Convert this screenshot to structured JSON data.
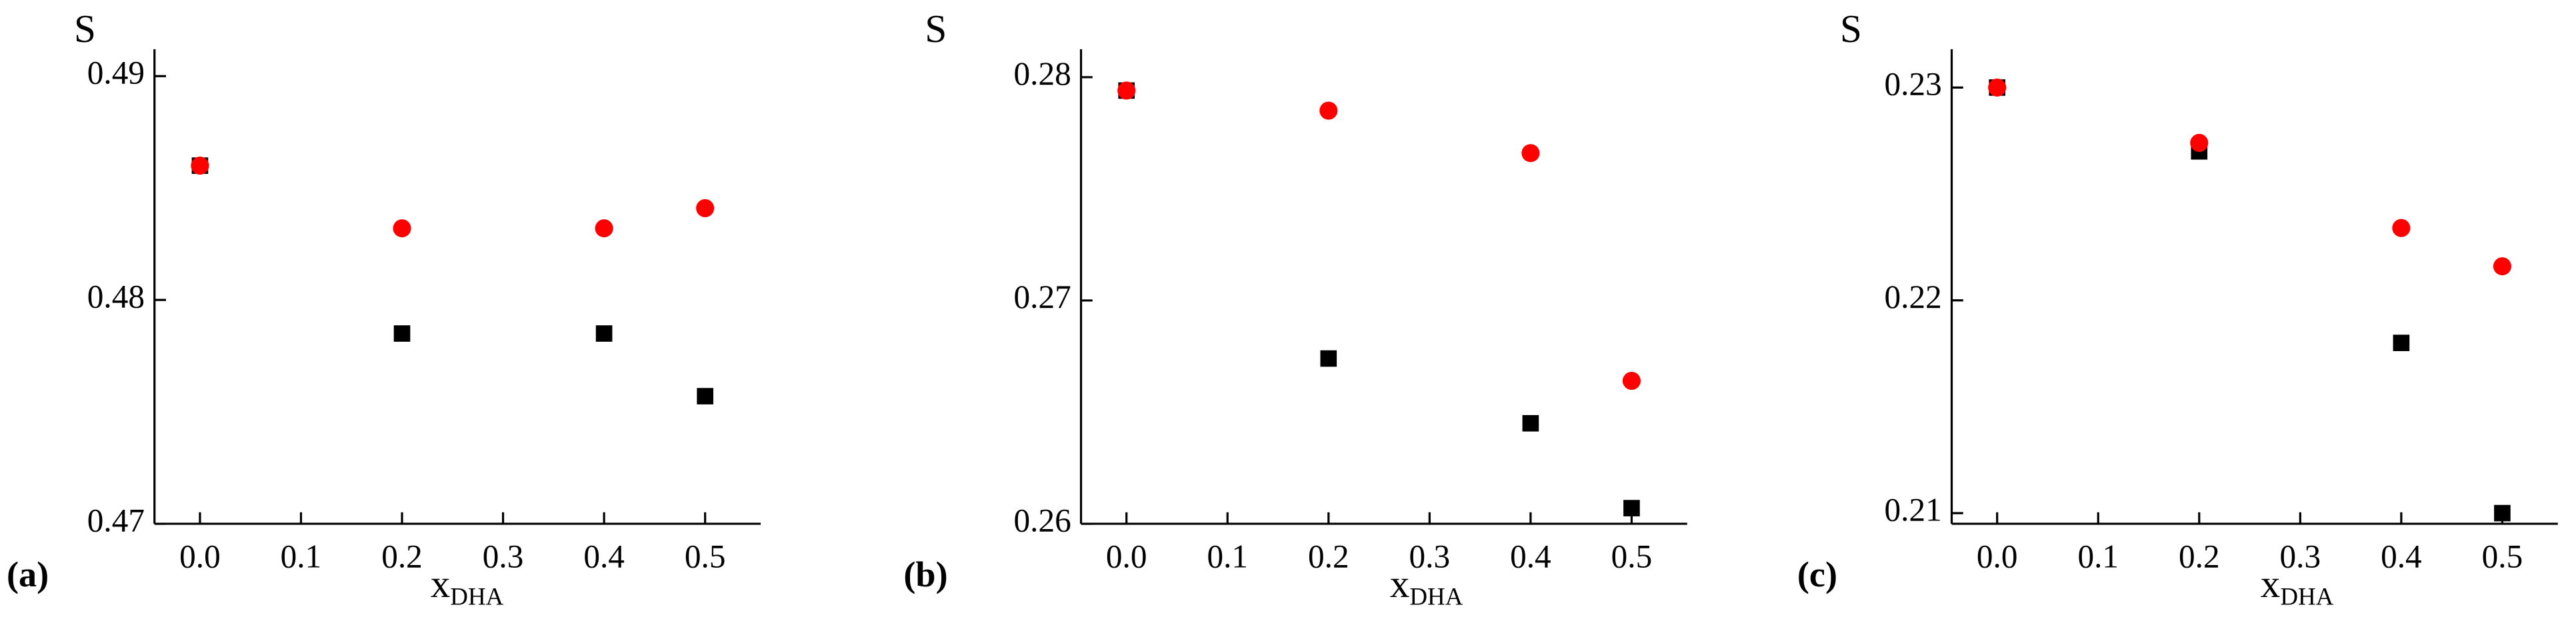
{
  "chart_data": [
    {
      "type": "scatter",
      "panel_label": "(a)",
      "ylabel": "S",
      "xlabel": "x",
      "xlabel_subscript": "DHA",
      "x": [
        0.0,
        0.2,
        0.4,
        0.5
      ],
      "series": [
        {
          "color": "#000000",
          "marker": "square",
          "values": [
            0.486,
            0.4785,
            0.4785,
            0.4757
          ]
        },
        {
          "color": "#ff0000",
          "marker": "circle",
          "values": [
            0.486,
            0.4832,
            0.4832,
            0.4841
          ]
        }
      ],
      "xlim": [
        -0.045,
        0.555
      ],
      "ylim": [
        0.47,
        0.4912
      ],
      "xticks": [
        {
          "value": 0,
          "label": "0.0"
        },
        0.1,
        0.2,
        0.3,
        0.4,
        0.5
      ],
      "yticks": [
        0.47,
        0.48,
        0.49
      ]
    },
    {
      "type": "scatter",
      "panel_label": "(b)",
      "ylabel": "S",
      "xlabel": "x",
      "xlabel_subscript": "DHA",
      "x": [
        0.0,
        0.2,
        0.4,
        0.5
      ],
      "series": [
        {
          "color": "#000000",
          "marker": "square",
          "values": [
            0.2794,
            0.2674,
            0.2645,
            0.2607
          ]
        },
        {
          "color": "#ff0000",
          "marker": "circle",
          "values": [
            0.2794,
            0.2785,
            0.2766,
            0.2664
          ]
        }
      ],
      "xlim": [
        -0.045,
        0.555
      ],
      "ylim": [
        0.26,
        0.28125
      ],
      "xticks": [
        {
          "value": 0,
          "label": "0.0"
        },
        0.1,
        0.2,
        0.3,
        0.4,
        0.5
      ],
      "yticks": [
        0.26,
        0.27,
        0.28
      ]
    },
    {
      "type": "scatter",
      "panel_label": "(c)",
      "ylabel": "S",
      "xlabel": "x",
      "xlabel_subscript": "DHA",
      "x": [
        0.0,
        0.2,
        0.4,
        0.5
      ],
      "series": [
        {
          "color": "#000000",
          "marker": "square",
          "values": [
            0.23,
            0.227,
            0.218,
            0.21
          ]
        },
        {
          "color": "#ff0000",
          "marker": "circle",
          "values": [
            0.23,
            0.2274,
            0.2234,
            0.2216
          ]
        }
      ],
      "xlim": [
        -0.045,
        0.555
      ],
      "ylim": [
        0.2095,
        0.2318
      ],
      "xticks": [
        {
          "value": 0,
          "label": "0.0"
        },
        0.1,
        0.2,
        0.3,
        0.4,
        0.5
      ],
      "yticks": [
        0.21,
        0.22,
        0.23
      ]
    }
  ]
}
